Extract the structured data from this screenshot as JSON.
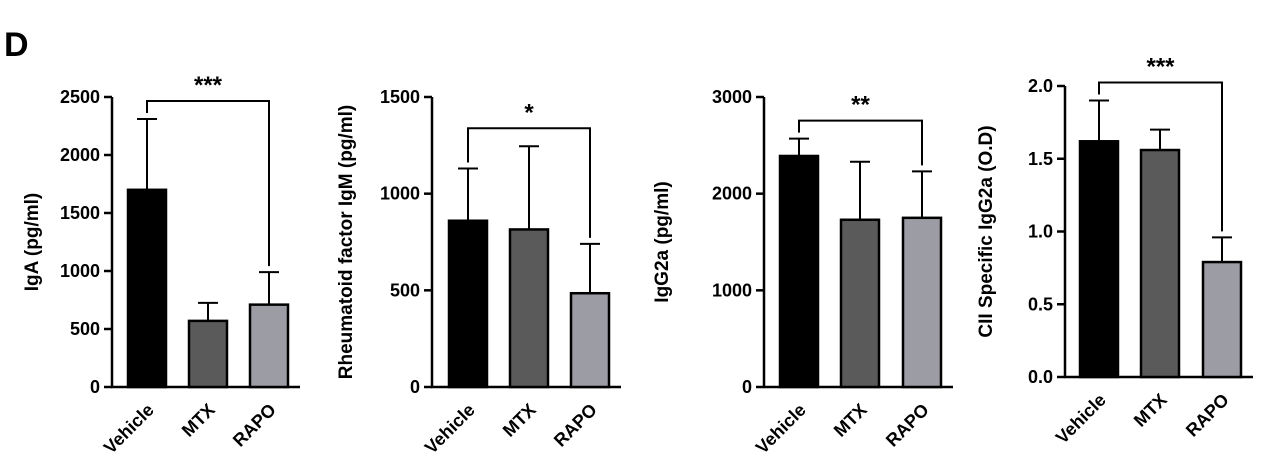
{
  "panel_label": "D",
  "chart_data": [
    {
      "type": "bar",
      "ylabel": "IgA (pg/ml)",
      "categories": [
        "Vehicle",
        "MTX",
        "RAPO"
      ],
      "values": [
        1700,
        570,
        710
      ],
      "error_upper": [
        2310,
        725,
        990
      ],
      "yticks": [
        "0",
        "500",
        "1000",
        "1500",
        "2000",
        "2500"
      ],
      "ylim": [
        0,
        2500
      ],
      "bar_colors": [
        "#000000",
        "#5a5a5a",
        "#9c9ca4"
      ],
      "significance": {
        "label": "***",
        "from": "Vehicle",
        "to": "RAPO"
      }
    },
    {
      "type": "bar",
      "ylabel": "Rheumatoid factor IgM (pg/ml)",
      "categories": [
        "Vehicle",
        "MTX",
        "RAPO"
      ],
      "values": [
        860,
        815,
        485
      ],
      "error_upper": [
        1130,
        1245,
        740
      ],
      "yticks": [
        "0",
        "500",
        "1000",
        "1500"
      ],
      "ylim": [
        0,
        1500
      ],
      "bar_colors": [
        "#000000",
        "#5a5a5a",
        "#9c9ca4"
      ],
      "significance": {
        "label": "*",
        "from": "Vehicle",
        "to": "RAPO"
      }
    },
    {
      "type": "bar",
      "ylabel": "IgG2a (pg/ml)",
      "categories": [
        "Vehicle",
        "MTX",
        "RAPO"
      ],
      "values": [
        2390,
        1730,
        1750
      ],
      "error_upper": [
        2570,
        2330,
        2230
      ],
      "yticks": [
        "0",
        "1000",
        "2000",
        "3000"
      ],
      "ylim": [
        0,
        3000
      ],
      "bar_colors": [
        "#000000",
        "#5a5a5a",
        "#9c9ca4"
      ],
      "significance": {
        "label": "**",
        "from": "Vehicle",
        "to": "RAPO"
      }
    },
    {
      "type": "bar",
      "ylabel": "CII Specific IgG2a (O.D)",
      "categories": [
        "Vehicle",
        "MTX",
        "RAPO"
      ],
      "values": [
        1.62,
        1.56,
        0.79
      ],
      "error_upper": [
        1.9,
        1.7,
        0.96
      ],
      "yticks": [
        "0.0",
        "0.5",
        "1.0",
        "1.5",
        "2.0"
      ],
      "ylim": [
        0,
        2.0
      ],
      "bar_colors": [
        "#000000",
        "#5a5a5a",
        "#9c9ca4"
      ],
      "significance": {
        "label": "***",
        "from": "Vehicle",
        "to": "RAPO"
      }
    }
  ]
}
